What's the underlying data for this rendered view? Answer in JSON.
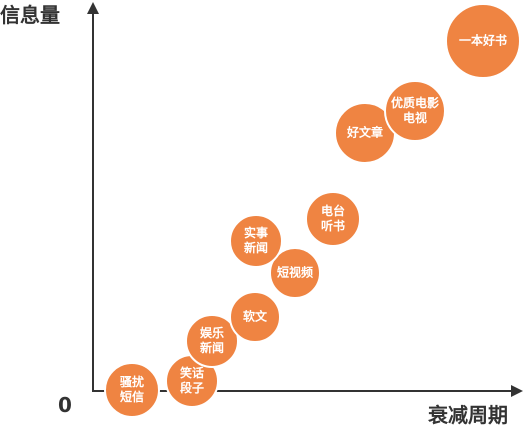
{
  "axes": {
    "y_label": "信息量",
    "x_label": "衰减周期",
    "origin": "0"
  },
  "nodes": [
    {
      "lines": [
        "骚扰",
        "短信"
      ]
    },
    {
      "lines": [
        "笑话",
        "段子"
      ]
    },
    {
      "lines": [
        "娱乐",
        "新闻"
      ]
    },
    {
      "lines": [
        "软文"
      ]
    },
    {
      "lines": [
        "短视频"
      ]
    },
    {
      "lines": [
        "实事",
        "新闻"
      ]
    },
    {
      "lines": [
        "电台",
        "听书"
      ]
    },
    {
      "lines": [
        "好文章"
      ]
    },
    {
      "lines": [
        "优质电影",
        "电视"
      ]
    },
    {
      "lines": [
        "一本好书"
      ]
    }
  ]
}
